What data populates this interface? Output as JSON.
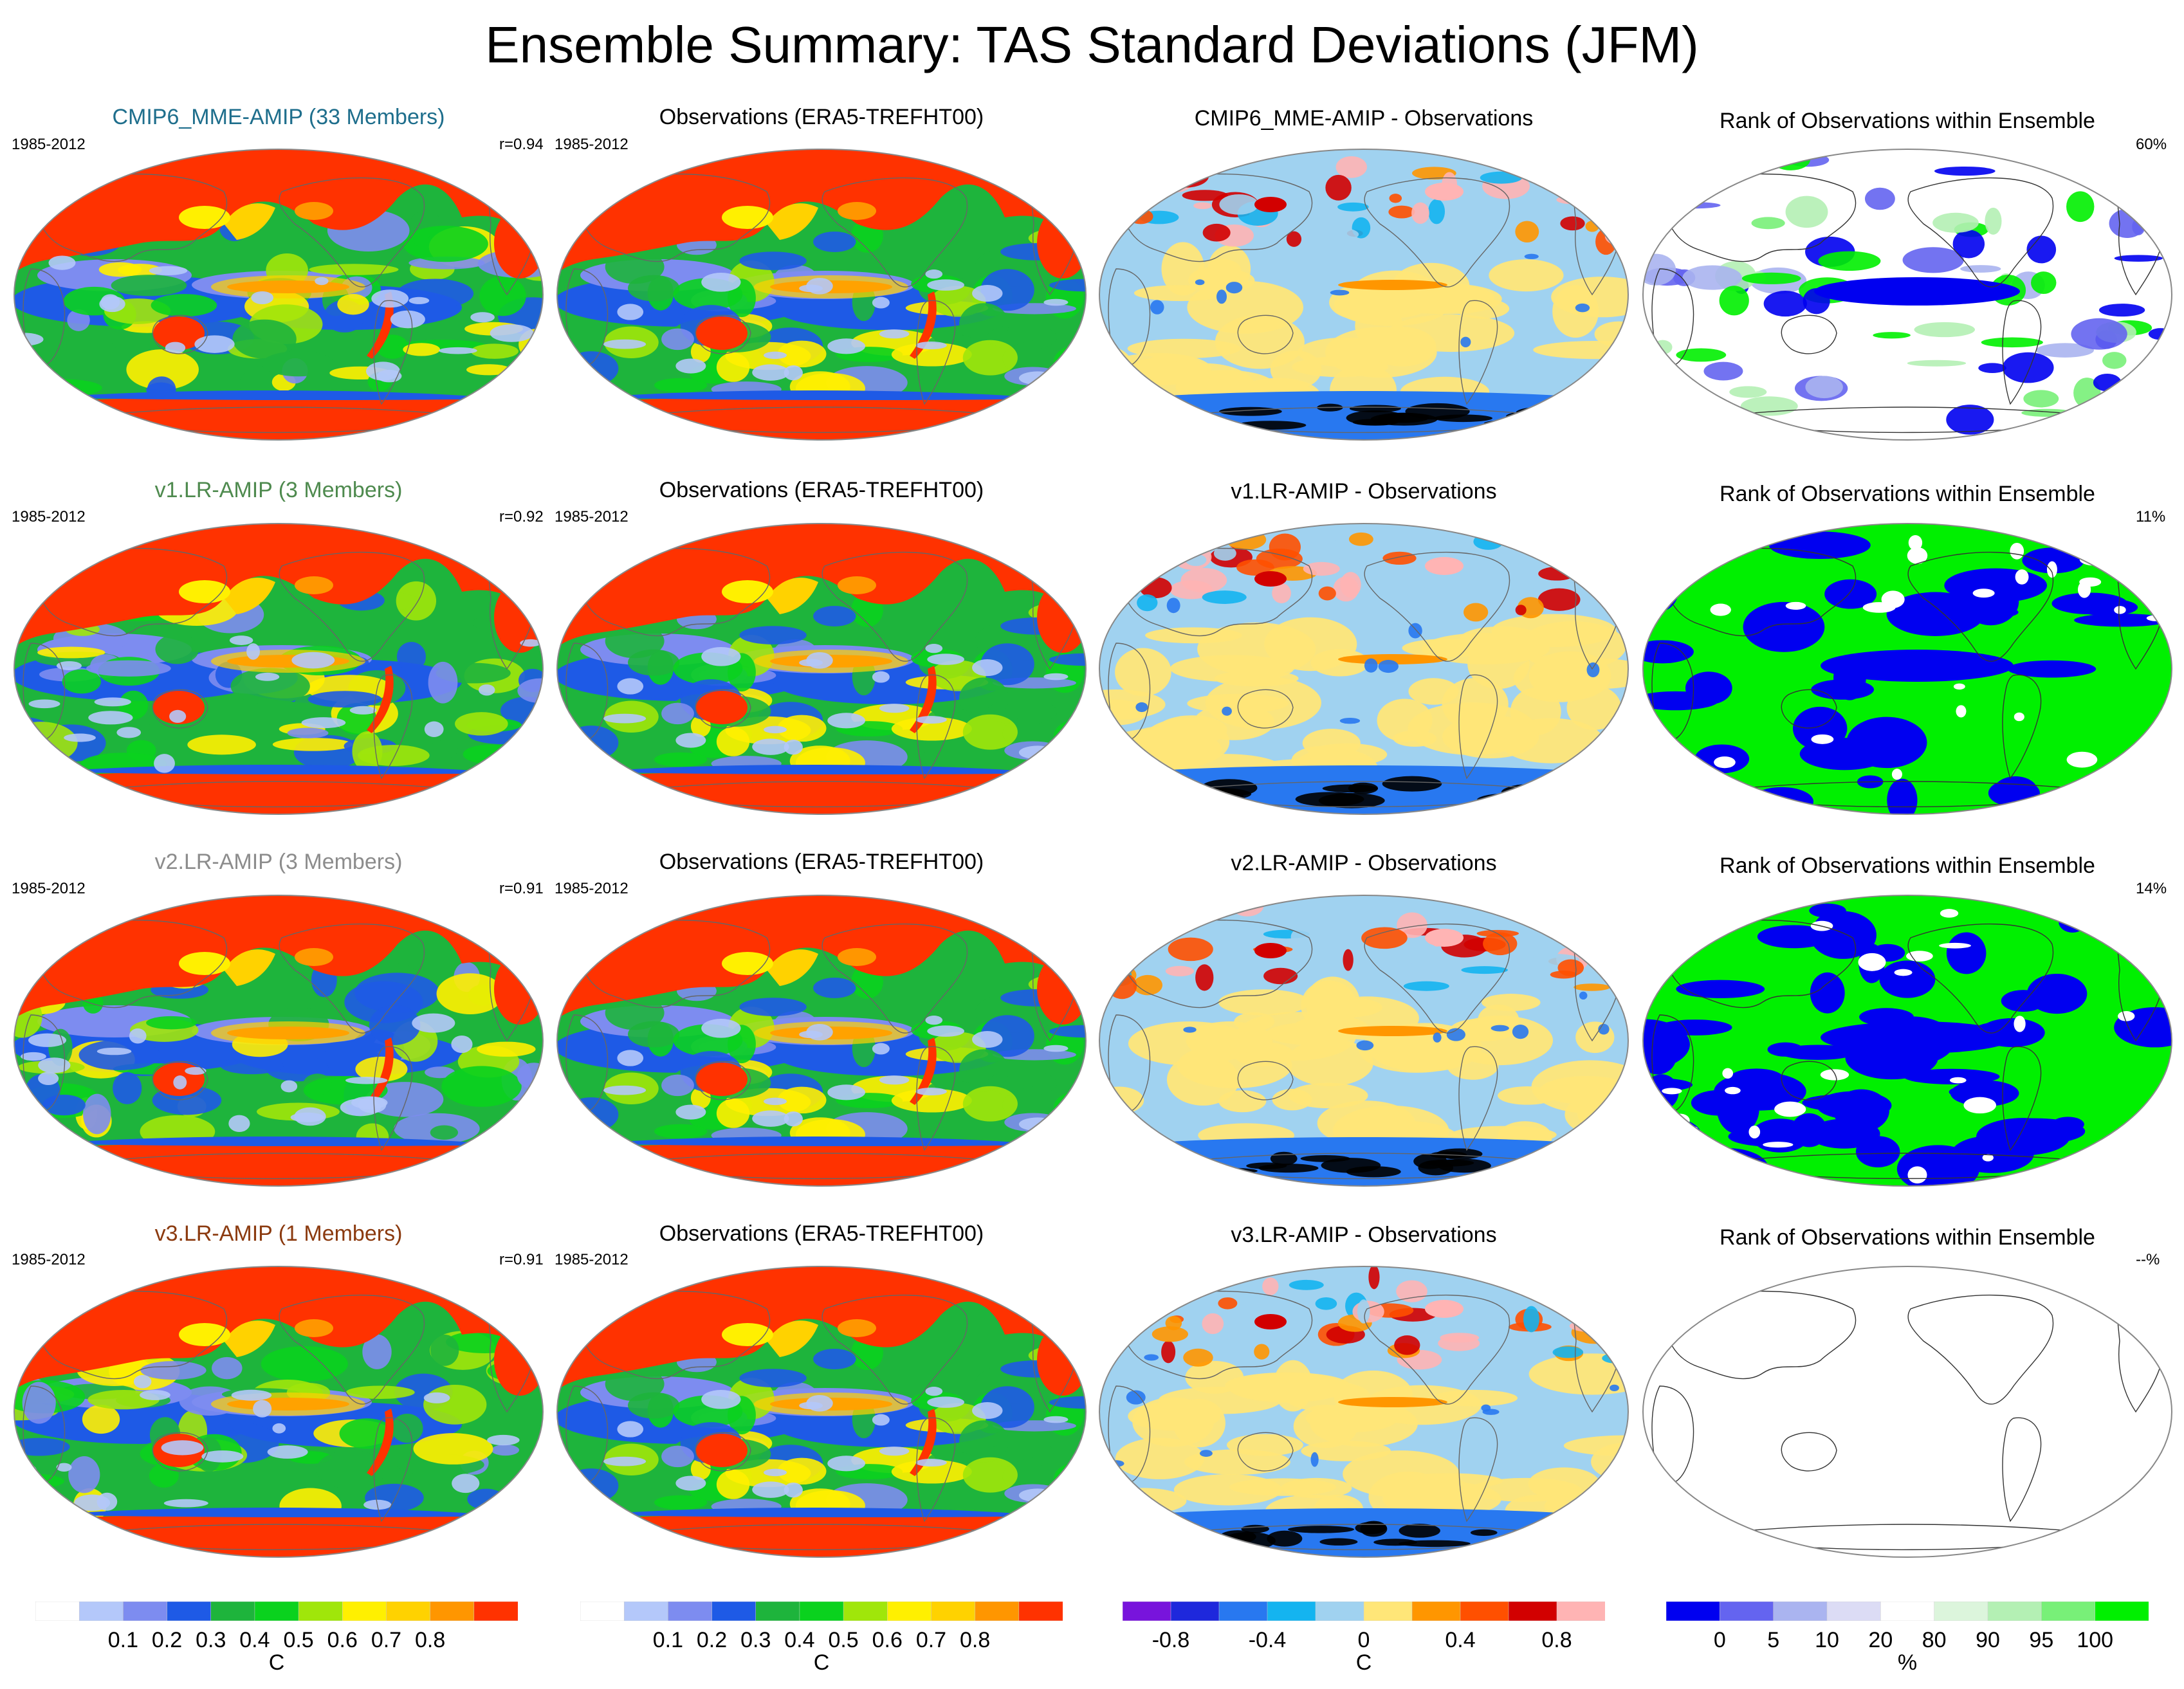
{
  "title": "Ensemble Summary: TAS Standard Deviations (JFM)",
  "rows": [
    {
      "model_title": "CMIP6_MME-AMIP (33 Members)",
      "model_title_color": "#1e6e8c",
      "model_period": "1985-2012",
      "model_r": "r=0.94",
      "obs_title": "Observations (ERA5-TREFHT00)",
      "obs_period": "1985-2012",
      "diff_title": "CMIP6_MME-AMIP - Observations",
      "rank_title": "Rank of Observations within Ensemble",
      "rank_pct": "60%",
      "rank_style": "mixed"
    },
    {
      "model_title": "v1.LR-AMIP (3 Members)",
      "model_title_color": "#4e8a4e",
      "model_period": "1985-2012",
      "model_r": "r=0.92",
      "obs_title": "Observations (ERA5-TREFHT00)",
      "obs_period": "1985-2012",
      "diff_title": "v1.LR-AMIP - Observations",
      "rank_title": "Rank of Observations within Ensemble",
      "rank_pct": "11%",
      "rank_style": "green"
    },
    {
      "model_title": "v2.LR-AMIP (3 Members)",
      "model_title_color": "#8c8c8c",
      "model_period": "1985-2012",
      "model_r": "r=0.91",
      "obs_title": "Observations (ERA5-TREFHT00)",
      "obs_period": "1985-2012",
      "diff_title": "v2.LR-AMIP - Observations",
      "rank_title": "Rank of Observations within Ensemble",
      "rank_pct": "14%",
      "rank_style": "blue"
    },
    {
      "model_title": "v3.LR-AMIP (1 Members)",
      "model_title_color": "#8b3a0f",
      "model_period": "1985-2012",
      "model_r": "r=0.91",
      "obs_title": "Observations (ERA5-TREFHT00)",
      "obs_period": "1985-2012",
      "diff_title": "v3.LR-AMIP - Observations",
      "rank_title": "Rank of Observations within Ensemble",
      "rank_pct": "--%",
      "rank_style": "empty"
    }
  ],
  "colorbars": {
    "std": {
      "colors": [
        "#ffffff",
        "#b4c8fa",
        "#7d8cf0",
        "#1e5ae6",
        "#1eb43c",
        "#0ad21e",
        "#a0e60a",
        "#fff000",
        "#ffd200",
        "#ff9600",
        "#ff3200"
      ],
      "ticks": [
        "0.1",
        "0.2",
        "0.3",
        "0.4",
        "0.5",
        "0.6",
        "0.7",
        "0.8"
      ],
      "unit": "C"
    },
    "diff": {
      "colors": [
        "#7814dc",
        "#1e28dc",
        "#2878f0",
        "#14b4f0",
        "#a0d2f0",
        "#ffe678",
        "#ff9600",
        "#ff5000",
        "#d20000",
        "#ffb4b4"
      ],
      "ticks": [
        "-0.8",
        "-0.4",
        "0",
        "0.4",
        "0.8"
      ],
      "unit": "C"
    },
    "rank": {
      "colors": [
        "#0000f0",
        "#6464f0",
        "#aab4f0",
        "#dcdcf5",
        "#ffffff",
        "#dcf5dc",
        "#b4f0b4",
        "#78f078",
        "#00f000"
      ],
      "ticks": [
        "0",
        "5",
        "10",
        "20",
        "80",
        "90",
        "95",
        "100"
      ],
      "unit": "%"
    }
  }
}
